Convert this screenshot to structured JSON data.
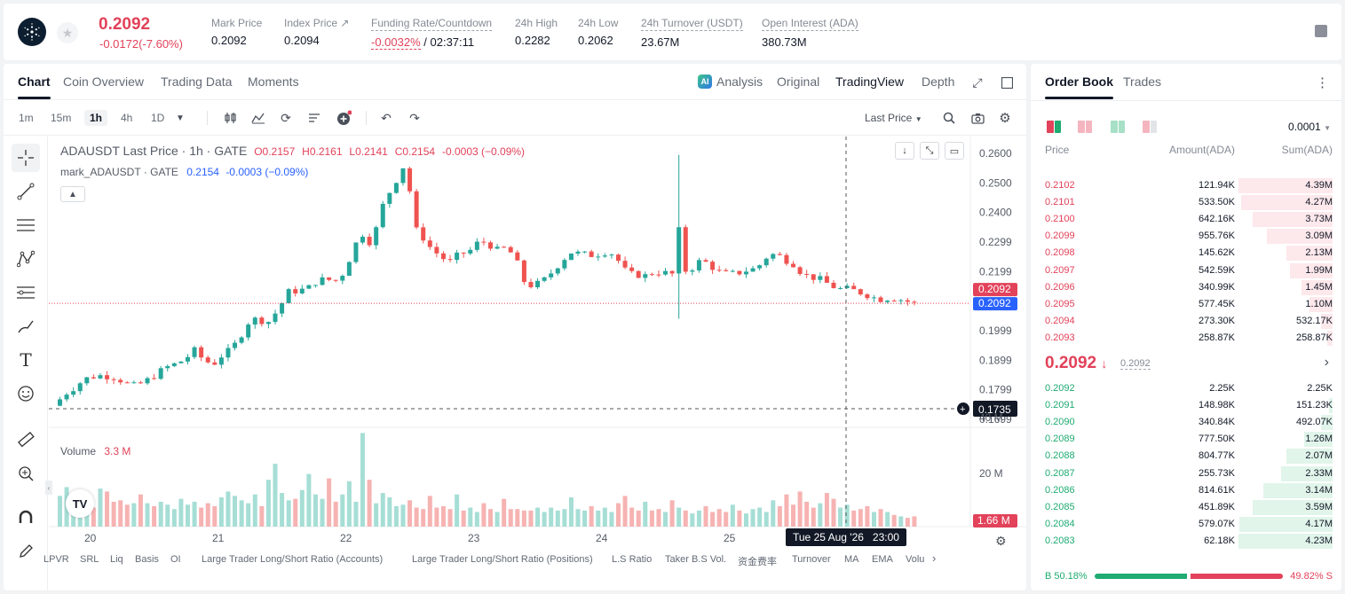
{
  "header": {
    "last_price": "0.2092",
    "change": "-0.0172(-7.60%)",
    "stats": [
      {
        "label": "Mark Price",
        "value": "0.2092",
        "dashed": false
      },
      {
        "label": "Index Price ↗",
        "value": "0.2094",
        "dashed": false
      },
      {
        "label": "Funding Rate/Countdown",
        "value_a": "-0.0032%",
        "value_b": "/ 02:37:11",
        "dashed": true
      },
      {
        "label": "24h High",
        "value": "0.2282",
        "dashed": false
      },
      {
        "label": "24h Low",
        "value": "0.2062",
        "dashed": false
      },
      {
        "label": "24h Turnover (USDT)",
        "value": "23.67M",
        "dashed": true
      },
      {
        "label": "Open Interest (ADA)",
        "value": "380.73M",
        "dashed": true
      }
    ]
  },
  "tabs": [
    "Chart",
    "Coin Overview",
    "Trading Data",
    "Moments"
  ],
  "views": {
    "analysis": "Analysis",
    "original": "Original",
    "tradingview": "TradingView",
    "depth": "Depth"
  },
  "timeframes": [
    "1m",
    "15m",
    "1h",
    "4h",
    "1D"
  ],
  "toolbar": {
    "last_price_select": "Last Price"
  },
  "legend": {
    "symbol": "ADAUSDT Last Price · 1h · GATE",
    "o": "O0.2157",
    "h": "H0.2161",
    "l": "L0.2141",
    "c": "C0.2154",
    "chg": "-0.0003 (−0.09%)",
    "mark_name": "mark_ADAUSDT · GATE",
    "mark_val": "0.2154",
    "mark_chg": "-0.0003 (−0.09%)",
    "vol_label": "Volume",
    "vol_val": "3.3 M"
  },
  "chart_data": {
    "type": "candlestick",
    "y_ticks": [
      "0.2600",
      "0.2500",
      "0.2400",
      "0.2299",
      "0.2199",
      "0.1999",
      "0.1899",
      "0.1799",
      "0.1699"
    ],
    "x_ticks": [
      "20",
      "21",
      "22",
      "23",
      "24",
      "25"
    ],
    "vol_ticks": [
      "40 M",
      "20 M"
    ],
    "price_tag_red": "0.2092",
    "price_tag_blue": "0.2092",
    "crosshair_price": "0.1735",
    "crosshair_vol": "1.66 M",
    "crosshair_time": "Tue 25 Aug '26   23:00",
    "anchors": [
      [
        0,
        0.1745
      ],
      [
        8,
        0.179
      ],
      [
        13,
        0.181
      ],
      [
        18,
        0.1835
      ],
      [
        24,
        0.1845
      ],
      [
        29,
        0.1848
      ],
      [
        35,
        0.1843
      ],
      [
        40,
        0.183
      ],
      [
        46,
        0.181
      ],
      [
        51,
        0.182
      ],
      [
        56,
        0.1835
      ],
      [
        62,
        0.186
      ],
      [
        67,
        0.1878
      ],
      [
        73,
        0.189
      ],
      [
        78,
        0.191
      ],
      [
        83,
        0.1935
      ],
      [
        88,
        0.1895
      ],
      [
        94,
        0.189
      ],
      [
        99,
        0.192
      ],
      [
        104,
        0.1935
      ],
      [
        110,
        0.199
      ],
      [
        115,
        0.204
      ],
      [
        121,
        0.2035
      ],
      [
        126,
        0.203
      ],
      [
        132,
        0.208
      ],
      [
        137,
        0.213
      ],
      [
        142,
        0.2135
      ],
      [
        148,
        0.214
      ],
      [
        153,
        0.2165
      ],
      [
        159,
        0.2175
      ],
      [
        164,
        0.2165
      ],
      [
        170,
        0.22
      ],
      [
        175,
        0.228
      ],
      [
        180,
        0.233
      ],
      [
        186,
        0.229
      ],
      [
        191,
        0.241
      ],
      [
        197,
        0.248
      ],
      [
        202,
        0.253
      ],
      [
        206,
        0.258
      ],
      [
        210,
        0.235
      ],
      [
        215,
        0.232
      ],
      [
        220,
        0.228
      ],
      [
        226,
        0.225
      ],
      [
        231,
        0.223
      ],
      [
        237,
        0.226
      ],
      [
        242,
        0.2265
      ],
      [
        248,
        0.23
      ],
      [
        253,
        0.23
      ],
      [
        258,
        0.227
      ],
      [
        264,
        0.228
      ],
      [
        269,
        0.225
      ],
      [
        275,
        0.216
      ],
      [
        280,
        0.215
      ],
      [
        286,
        0.217
      ],
      [
        291,
        0.22
      ],
      [
        297,
        0.224
      ],
      [
        302,
        0.2265
      ],
      [
        307,
        0.226
      ],
      [
        313,
        0.2255
      ],
      [
        318,
        0.226
      ],
      [
        324,
        0.227
      ],
      [
        329,
        0.224
      ],
      [
        335,
        0.219
      ],
      [
        340,
        0.219
      ],
      [
        345,
        0.2185
      ],
      [
        351,
        0.22
      ],
      [
        356,
        0.2195
      ],
      [
        362,
        0.219
      ],
      [
        367,
        0.22
      ],
      [
        372,
        0.221
      ],
      [
        378,
        0.224
      ],
      [
        383,
        0.222
      ],
      [
        389,
        0.2195
      ],
      [
        394,
        0.219
      ],
      [
        399,
        0.2195
      ],
      [
        405,
        0.2205
      ],
      [
        410,
        0.221
      ],
      [
        416,
        0.225
      ],
      [
        421,
        0.226
      ],
      [
        427,
        0.224
      ],
      [
        432,
        0.2225
      ],
      [
        437,
        0.219
      ],
      [
        443,
        0.218
      ],
      [
        448,
        0.217
      ],
      [
        454,
        0.215
      ],
      [
        459,
        0.214
      ],
      [
        464,
        0.214
      ],
      [
        470,
        0.213
      ],
      [
        475,
        0.212
      ],
      [
        481,
        0.2105
      ],
      [
        486,
        0.211
      ],
      [
        491,
        0.211
      ],
      [
        497,
        0.21
      ],
      [
        502,
        0.2092
      ]
    ],
    "volume": [
      2.1,
      2.7,
      1.6,
      2.4,
      1.5,
      1.3,
      2.6,
      2.4,
      1.7,
      1.8,
      1.5,
      1.6,
      2.2,
      1.6,
      1.4,
      1.7,
      1.5,
      1.2,
      1.9,
      1.5,
      1.7,
      1.3,
      1.6,
      1.4,
      2.0,
      2.4,
      2.1,
      1.8,
      1.6,
      2.2,
      1.4,
      3.2,
      4.3,
      2.3,
      1.8,
      1.9,
      2.5,
      3.6,
      2.2,
      1.9,
      3.3,
      1.7,
      2.2,
      3.1,
      1.7,
      6.4,
      3.2,
      1.6,
      2.3,
      2.0,
      1.4,
      1.5,
      1.8,
      1.3,
      1.2,
      2.1,
      1.3,
      1.4,
      1.2,
      2.2,
      1.1,
      1.3,
      1.0,
      1.6,
      1.2,
      1.0,
      1.9,
      1.2,
      1.2,
      1.1,
      1.1,
      1.3,
      1.0,
      1.3,
      1.1,
      1.2,
      2.0,
      1.2,
      1.1,
      1.4,
      1.1,
      1.3,
      1.0,
      1.6,
      2.1,
      1.3,
      1.1,
      1.7,
      1.1,
      1.2,
      1.0,
      1.8,
      1.3,
      1.1,
      0.9,
      1.1,
      1.4,
      1.0,
      1.2,
      1.0,
      1.5,
      1.1,
      0.9,
      1.2,
      1.3,
      1.0,
      1.8,
      1.4,
      2.2,
      1.5,
      2.4,
      1.7,
      1.3,
      1.6,
      2.3,
      1.9,
      1.3,
      1.5,
      1.1,
      1.2,
      1.4,
      1.0,
      1.2,
      1.0,
      0.8,
      0.7,
      0.6,
      0.7,
      0.5
    ]
  },
  "indicators": [
    "LPVR",
    "SRL",
    "Liq",
    "Basis",
    "OI",
    "Large Trader Long/Short Ratio (Accounts)",
    "Large Trader Long/Short Ratio (Positions)",
    "L.S Ratio",
    "Taker B.S Vol.",
    "资金费率",
    "Turnover",
    "MA",
    "EMA",
    "Volu"
  ],
  "orderbook": {
    "tabs": [
      "Order Book",
      "Trades"
    ],
    "precision": "0.0001",
    "columns": [
      "Price",
      "Amount(ADA)",
      "Sum(ADA)"
    ],
    "asks": [
      {
        "p": "0.2102",
        "a": "121.94K",
        "s": "4.39M",
        "d": 1.0
      },
      {
        "p": "0.2101",
        "a": "533.50K",
        "s": "4.27M",
        "d": 0.97
      },
      {
        "p": "0.2100",
        "a": "642.16K",
        "s": "3.73M",
        "d": 0.85
      },
      {
        "p": "0.2099",
        "a": "955.76K",
        "s": "3.09M",
        "d": 0.7
      },
      {
        "p": "0.2098",
        "a": "145.62K",
        "s": "2.13M",
        "d": 0.49
      },
      {
        "p": "0.2097",
        "a": "542.59K",
        "s": "1.99M",
        "d": 0.45
      },
      {
        "p": "0.2096",
        "a": "340.99K",
        "s": "1.45M",
        "d": 0.33
      },
      {
        "p": "0.2095",
        "a": "577.45K",
        "s": "1.10M",
        "d": 0.25
      },
      {
        "p": "0.2094",
        "a": "273.30K",
        "s": "532.17K",
        "d": 0.12
      },
      {
        "p": "0.2093",
        "a": "258.87K",
        "s": "258.87K",
        "d": 0.06
      }
    ],
    "mid_price": "0.2092",
    "mid_mark": "0.2092",
    "bids": [
      {
        "p": "0.2092",
        "a": "2.25K",
        "s": "2.25K",
        "d": 0.0
      },
      {
        "p": "0.2091",
        "a": "148.98K",
        "s": "151.23K",
        "d": 0.04
      },
      {
        "p": "0.2090",
        "a": "340.84K",
        "s": "492.07K",
        "d": 0.12
      },
      {
        "p": "0.2089",
        "a": "777.50K",
        "s": "1.26M",
        "d": 0.3
      },
      {
        "p": "0.2088",
        "a": "804.77K",
        "s": "2.07M",
        "d": 0.49
      },
      {
        "p": "0.2087",
        "a": "255.73K",
        "s": "2.33M",
        "d": 0.55
      },
      {
        "p": "0.2086",
        "a": "814.61K",
        "s": "3.14M",
        "d": 0.74
      },
      {
        "p": "0.2085",
        "a": "451.89K",
        "s": "3.59M",
        "d": 0.85
      },
      {
        "p": "0.2084",
        "a": "579.07K",
        "s": "4.17M",
        "d": 0.99
      },
      {
        "p": "0.2083",
        "a": "62.18K",
        "s": "4.23M",
        "d": 1.0
      }
    ],
    "buy_ratio": "B 50.18%",
    "sell_ratio": "49.82% S"
  },
  "colors": {
    "up": "#1fab72",
    "down": "#e2425a",
    "up_candle": "#26a69a",
    "down_candle": "#ef5350",
    "blue": "#2962ff"
  }
}
